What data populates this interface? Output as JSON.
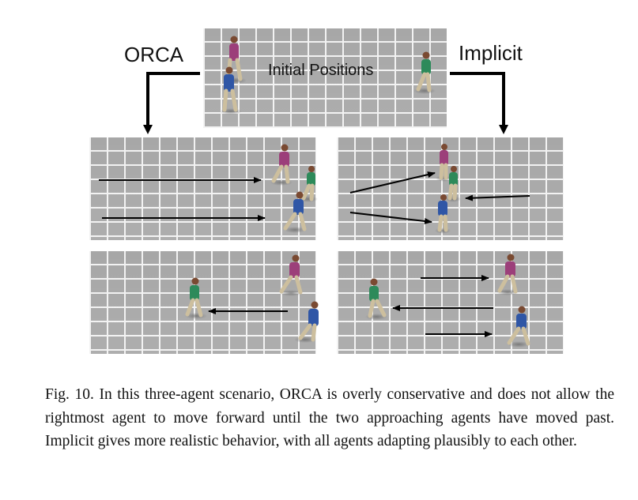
{
  "labels": {
    "left_method": "ORCA",
    "right_method": "Implicit",
    "top_panel": "Initial Positions"
  },
  "caption": {
    "text": "Fig. 10.  In this three-agent scenario, ORCA is overly conservative and does not allow the rightmost agent to move forward until the two approaching agents have moved past.  Implicit gives more realistic behavior, with all agents adapting plausibly to each other."
  },
  "colors": {
    "agent_magenta": "#9c3f7a",
    "agent_blue": "#2f56a6",
    "agent_green": "#2d8a5a",
    "pants": "#cdbf9e",
    "arrow": "#000000",
    "floor": "#a7a7a7",
    "grid": "#f2f2f2"
  }
}
